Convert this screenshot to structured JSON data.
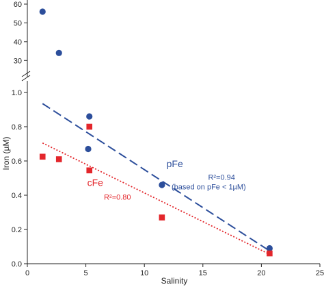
{
  "chart_data": {
    "type": "scatter",
    "xlabel": "Salinity",
    "ylabel": "Iron (µM)",
    "xlim": [
      0,
      25
    ],
    "x_ticks": [
      0,
      5,
      10,
      15,
      20,
      25
    ],
    "y_lower": {
      "range": [
        0,
        1.0
      ],
      "ticks": [
        0.0,
        0.2,
        0.4,
        0.6,
        0.8,
        1.0
      ]
    },
    "y_upper": {
      "range": [
        25,
        60
      ],
      "ticks": [
        30,
        40,
        50,
        60
      ]
    },
    "axis_break": "between 1.0 and 25",
    "grid": false,
    "series": [
      {
        "name": "pFe",
        "marker": "circle",
        "color": "#2c4e9b",
        "points": [
          {
            "x": 1.3,
            "y": 56
          },
          {
            "x": 2.7,
            "y": 34
          },
          {
            "x": 5.3,
            "y": 0.86
          },
          {
            "x": 5.2,
            "y": 0.67
          },
          {
            "x": 11.5,
            "y": 0.46
          },
          {
            "x": 20.7,
            "y": 0.09
          }
        ],
        "fit": {
          "x": [
            1.3,
            20.7
          ],
          "y": [
            0.935,
            0.075
          ],
          "style": "dashed",
          "r2_label": "R²=0.94",
          "note": "(based on pFe < 1µM)"
        }
      },
      {
        "name": "cFe",
        "marker": "square",
        "color": "#e3262b",
        "points": [
          {
            "x": 1.3,
            "y": 0.625
          },
          {
            "x": 2.7,
            "y": 0.61
          },
          {
            "x": 5.3,
            "y": 0.8
          },
          {
            "x": 5.3,
            "y": 0.545
          },
          {
            "x": 11.5,
            "y": 0.27
          },
          {
            "x": 20.7,
            "y": 0.06
          }
        ],
        "fit": {
          "x": [
            1.3,
            20.7
          ],
          "y": [
            0.705,
            0.055
          ],
          "style": "dotted",
          "r2_label": "R²=0.80"
        }
      }
    ],
    "annotations": [
      {
        "text": "pFe",
        "x": 12.6,
        "y": 0.565,
        "color": "#2c4e9b",
        "size": "large"
      },
      {
        "text": "R²=0.94",
        "x": 16.6,
        "y": 0.49,
        "color": "#2c4e9b",
        "size": "small"
      },
      {
        "text": "(based on pFe < 1µM)",
        "x": 15.5,
        "y": 0.435,
        "color": "#2c4e9b",
        "size": "small"
      },
      {
        "text": "cFe",
        "x": 5.8,
        "y": 0.455,
        "color": "#e3262b",
        "size": "large"
      },
      {
        "text": "R²=0.80",
        "x": 7.7,
        "y": 0.375,
        "color": "#e3262b",
        "size": "small"
      }
    ]
  }
}
